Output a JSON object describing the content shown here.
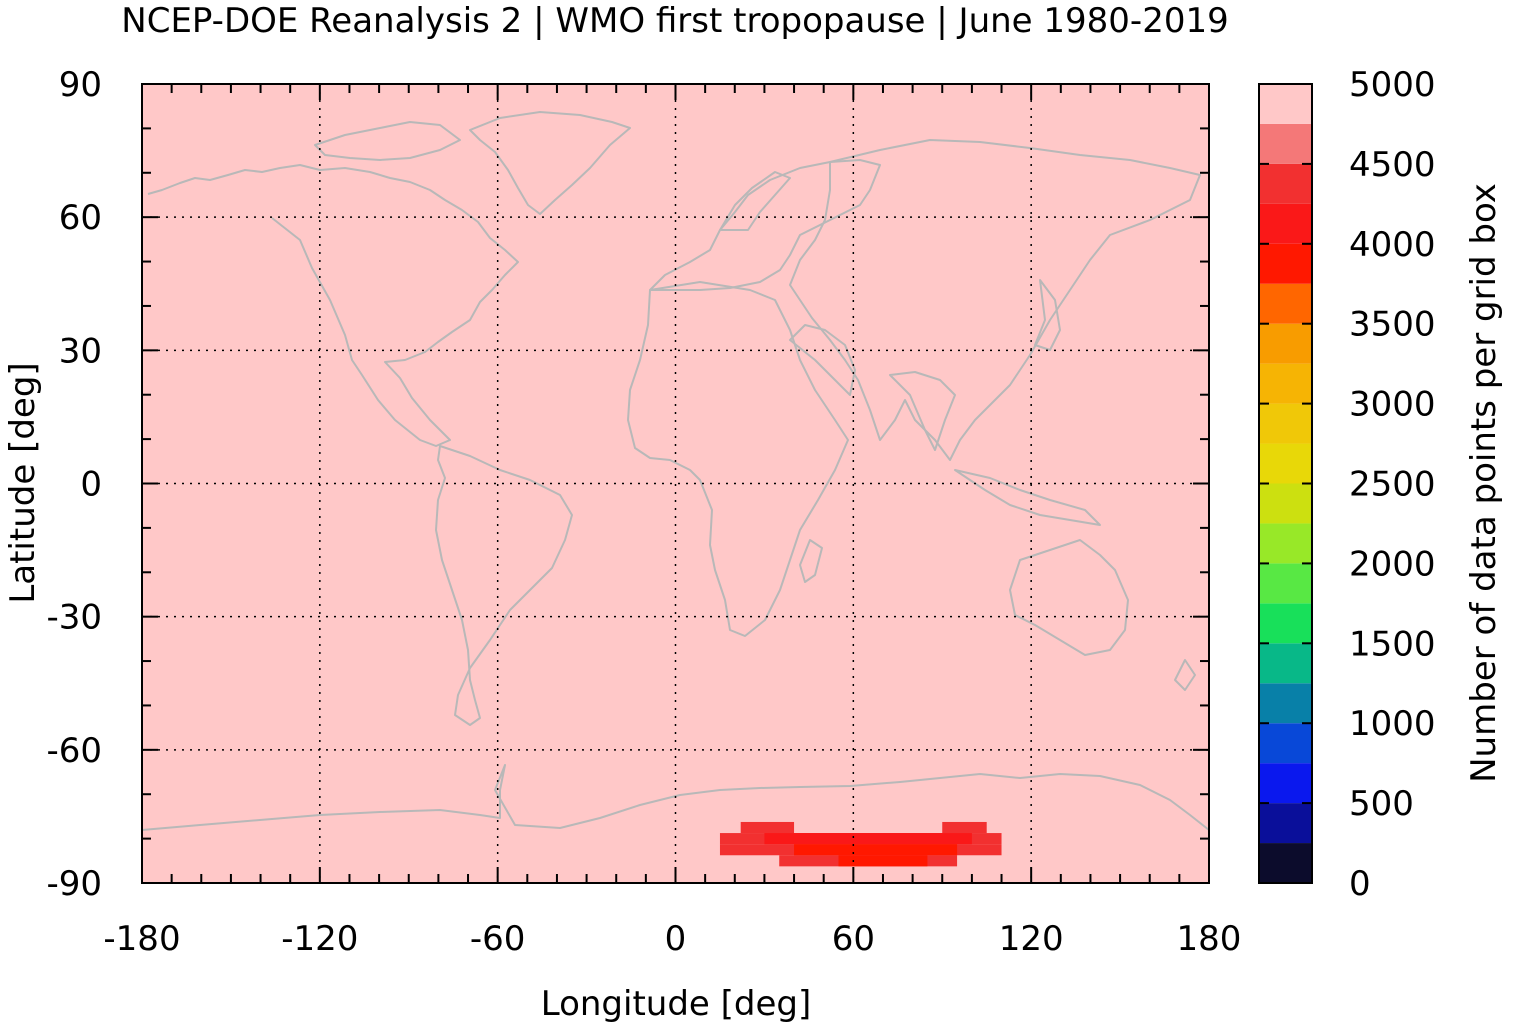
{
  "chart_data": {
    "type": "heatmap",
    "title": "NCEP-DOE Reanalysis 2 | WMO first tropopause | June 1980-2019",
    "xlabel": "Longitude [deg]",
    "ylabel": "Latitude [deg]",
    "colorbar_label": "Number of data points per grid box",
    "xlim": [
      -180,
      180
    ],
    "ylim": [
      -90,
      90
    ],
    "xticks": [
      "-180",
      "-120",
      "-60",
      "0",
      "60",
      "120",
      "180"
    ],
    "yticks": [
      "90",
      "60",
      "30",
      "0",
      "-30",
      "-60",
      "-90"
    ],
    "xtick_values": [
      -180,
      -120,
      -60,
      0,
      60,
      120,
      180
    ],
    "ytick_values": [
      90,
      60,
      30,
      0,
      -30,
      -60,
      -90
    ],
    "grid": true,
    "coastlines": true,
    "colorbar": {
      "range": [
        0,
        5000
      ],
      "tick_labels": [
        "5000",
        "4500",
        "4000",
        "3500",
        "3000",
        "2500",
        "2000",
        "1500",
        "1000",
        "500",
        "0"
      ],
      "tick_values": [
        5000,
        4500,
        4000,
        3500,
        3000,
        2500,
        2000,
        1500,
        1000,
        500,
        0
      ],
      "colors": [
        "#0c0c2c",
        "#0a0f9a",
        "#0a18ee",
        "#0848d8",
        "#0880a8",
        "#08b888",
        "#18e05a",
        "#58e844",
        "#98e828",
        "#cce010",
        "#e8d808",
        "#f0c808",
        "#f6b404",
        "#f89c00",
        "#ff6600",
        "#ff1800",
        "#fa1818",
        "#f23030",
        "#f47878",
        "#ffc8c8"
      ]
    },
    "background_value": 5000,
    "field_rows": [
      {
        "lat": -75,
        "lon_range": [
          100,
          137
        ],
        "value": 4750
      },
      {
        "lat": -77.5,
        "lon_range": [
          10,
          137
        ],
        "value": 4750
      },
      {
        "lat": -80,
        "lon_range": [
          3,
          125
        ],
        "value": 4750
      },
      {
        "lat": -82.5,
        "lon_range": [
          5,
          118
        ],
        "value": 4750
      },
      {
        "lat": -85,
        "lon_range": [
          15,
          112
        ],
        "value": 4750
      },
      {
        "lat": -87.5,
        "lon_range": [
          35,
          100
        ],
        "value": 4750
      },
      {
        "lat": -77.5,
        "lon_range": [
          22,
          40
        ],
        "value": 4250
      },
      {
        "lat": -77.5,
        "lon_range": [
          90,
          105
        ],
        "value": 4250
      },
      {
        "lat": -80,
        "lon_range": [
          15,
          110
        ],
        "value": 4250
      },
      {
        "lat": -82.5,
        "lon_range": [
          15,
          110
        ],
        "value": 4250
      },
      {
        "lat": -85,
        "lon_range": [
          35,
          95
        ],
        "value": 4250
      },
      {
        "lat": -80,
        "lon_range": [
          30,
          100
        ],
        "value": 4000
      },
      {
        "lat": -82.5,
        "lon_range": [
          40,
          95
        ],
        "value": 3900
      },
      {
        "lat": -85,
        "lon_range": [
          55,
          85
        ],
        "value": 3900
      }
    ]
  }
}
